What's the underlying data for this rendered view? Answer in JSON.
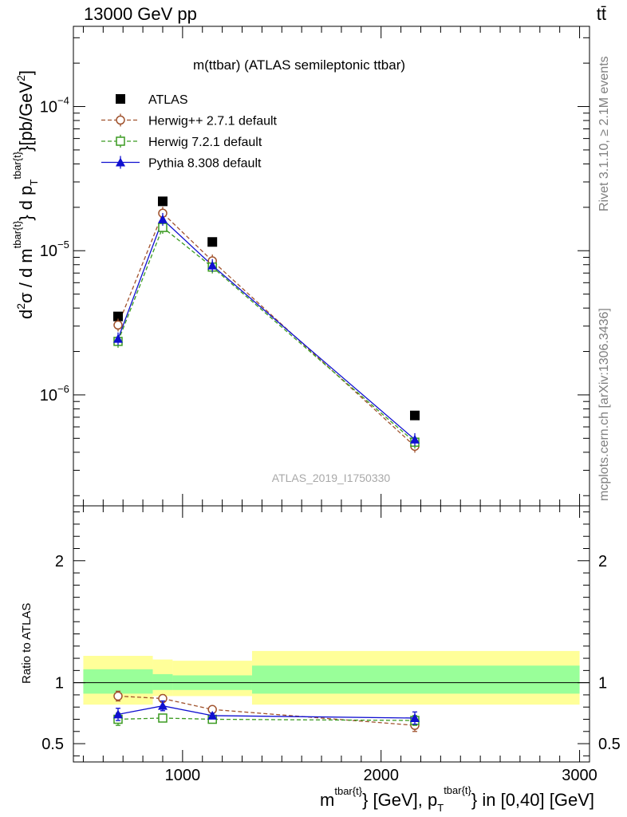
{
  "header": {
    "left": "13000 GeV pp",
    "right": "tt̄"
  },
  "side_labels": {
    "rivet": "Rivet 3.1.10, ≥ 2.1M events",
    "mcplots": "mcplots.cern.ch [arXiv:1306.3436]"
  },
  "watermark": "ATLAS_2019_I1750330",
  "chart_data": [
    {
      "type": "line",
      "panel": "main",
      "title": "m(ttbar) (ATLAS semileptonic ttbar)",
      "ylabel": "d²σ / d m^{tbar{t}} d p_T^{tbar{t}} [pb/GeV²]",
      "yscale": "log",
      "xlim": [
        450,
        3050
      ],
      "ylim": [
        1.7e-07,
        0.00036
      ],
      "y_ticks": [
        {
          "value": 1e-06,
          "label": "10",
          "exp": "−6"
        },
        {
          "value": 1e-05,
          "label": "10",
          "exp": "−5"
        },
        {
          "value": 0.0001,
          "label": "10",
          "exp": "−4"
        }
      ],
      "legend": "top-left",
      "series": [
        {
          "name": "ATLAS",
          "color": "#000000",
          "marker": "square-filled",
          "style": "points",
          "x": [
            675,
            900,
            1150,
            2170
          ],
          "y": [
            3.5e-06,
            2.2e-05,
            1.15e-05,
            7.2e-07
          ]
        },
        {
          "name": "Herwig++ 2.7.1 default",
          "color": "#a0522d",
          "marker": "circle-open",
          "style": "dashed",
          "x": [
            675,
            900,
            1150,
            2170
          ],
          "y": [
            3.05e-06,
            1.82e-05,
            8.5e-06,
            4.4e-07
          ]
        },
        {
          "name": "Herwig 7.2.1 default",
          "color": "#3a9a20",
          "marker": "square-open",
          "style": "dashed",
          "x": [
            675,
            900,
            1150,
            2170
          ],
          "y": [
            2.35e-06,
            1.45e-05,
            7.7e-06,
            4.7e-07
          ]
        },
        {
          "name": "Pythia 8.308 default",
          "color": "#1010d0",
          "marker": "triangle-filled",
          "style": "solid",
          "x": [
            675,
            900,
            1150,
            2170
          ],
          "y": [
            2.45e-06,
            1.65e-05,
            7.9e-06,
            4.9e-07
          ]
        }
      ]
    },
    {
      "type": "line",
      "panel": "ratio",
      "ylabel": "Ratio to ATLAS",
      "xlabel": "m^{tbar{t}} [GeV], p_T^{tbar{t}} in [0,40] [GeV]",
      "xlim": [
        450,
        3050
      ],
      "ylim": [
        0.35,
        2.45
      ],
      "x_ticks": [
        {
          "value": 1000,
          "label": "1000"
        },
        {
          "value": 2000,
          "label": "2000"
        },
        {
          "value": 3000,
          "label": "3000"
        }
      ],
      "y_ticks": [
        {
          "value": 0.5,
          "label": "0.5"
        },
        {
          "value": 1,
          "label": "1"
        },
        {
          "value": 2,
          "label": "2"
        }
      ],
      "bands": [
        {
          "x0": 500,
          "x1": 850,
          "yellow": [
            0.82,
            1.22
          ],
          "green": [
            0.91,
            1.11
          ]
        },
        {
          "x0": 850,
          "x1": 950,
          "yellow": [
            0.89,
            1.19
          ],
          "green": [
            0.94,
            1.07
          ]
        },
        {
          "x0": 950,
          "x1": 1350,
          "yellow": [
            0.89,
            1.18
          ],
          "green": [
            0.94,
            1.06
          ]
        },
        {
          "x0": 1350,
          "x1": 3000,
          "yellow": [
            0.82,
            1.26
          ],
          "green": [
            0.91,
            1.14
          ]
        }
      ],
      "series": [
        {
          "name": "Herwig++ 2.7.1 default",
          "color": "#a0522d",
          "marker": "circle-open",
          "style": "dashed",
          "x": [
            675,
            900,
            1150,
            2170
          ],
          "y": [
            0.89,
            0.87,
            0.78,
            0.65
          ],
          "err": [
            0.04,
            0.03,
            0.02,
            0.05
          ]
        },
        {
          "name": "Herwig 7.2.1 default",
          "color": "#3a9a20",
          "marker": "square-open",
          "style": "dashed",
          "x": [
            675,
            900,
            1150,
            2170
          ],
          "y": [
            0.7,
            0.71,
            0.7,
            0.69
          ],
          "err": [
            0.05,
            0.03,
            0.02,
            0.04
          ]
        },
        {
          "name": "Pythia 8.308 default",
          "color": "#1010d0",
          "marker": "triangle-filled",
          "style": "solid",
          "x": [
            675,
            900,
            1150,
            2170
          ],
          "y": [
            0.74,
            0.81,
            0.73,
            0.71
          ],
          "err": [
            0.05,
            0.04,
            0.02,
            0.05
          ]
        }
      ]
    }
  ]
}
